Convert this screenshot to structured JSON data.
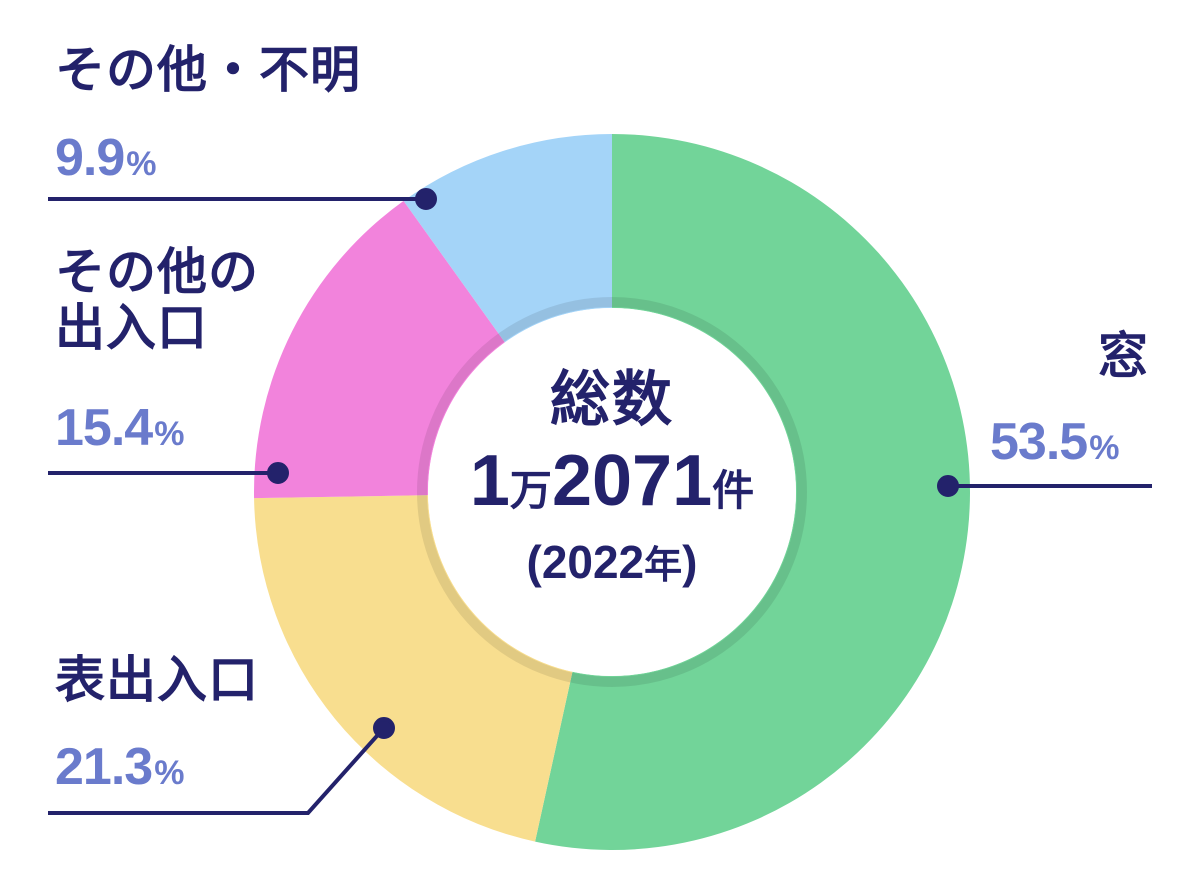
{
  "chart_data": {
    "type": "pie",
    "variant": "donut",
    "title": "総数 1万2071件 (2022年)",
    "center": {
      "label": "総数",
      "count_prefix": "1",
      "count_unit_man": "万",
      "count_rest": "2071",
      "count_unit": "件",
      "year_open": "(",
      "year": "2022",
      "year_unit": "年",
      "year_close": ")"
    },
    "total": 12071,
    "year": 2022,
    "categories": [
      "窓",
      "表出入口",
      "その他の出入口",
      "その他・不明"
    ],
    "values": [
      53.5,
      21.3,
      15.4,
      9.9
    ],
    "unit": "%",
    "colors": [
      "#72d499",
      "#f8de8f",
      "#f283dc",
      "#a4d4f8"
    ],
    "slices": [
      {
        "name": "窓",
        "value": 53.5,
        "display": "53.5",
        "color": "#72d499"
      },
      {
        "name": "表出入口",
        "value": 21.3,
        "display": "21.3",
        "color": "#f8de8f"
      },
      {
        "name": "その他の出入口",
        "name_line1": "その他の",
        "name_line2": "出入口",
        "value": 15.4,
        "display": "15.4",
        "color": "#f283dc"
      },
      {
        "name": "その他・不明",
        "value": 9.9,
        "display": "9.9",
        "color": "#a4d4f8"
      }
    ],
    "legend_position": "outside labels with leader lines",
    "text_color": "#23226b",
    "percent_color": "#6a7bcc"
  }
}
